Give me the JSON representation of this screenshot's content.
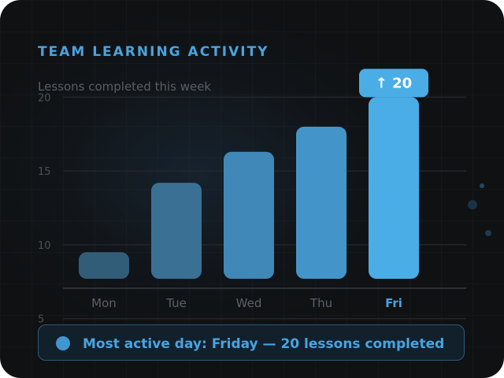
{
  "card": {
    "title": "TEAM LEARNING ACTIVITY",
    "subtitle": "Lessons completed this week"
  },
  "chart_data": {
    "type": "bar",
    "categories": [
      "Mon",
      "Tue",
      "Wed",
      "Thu",
      "Fri"
    ],
    "values": [
      9.5,
      14.2,
      16.3,
      18.0,
      20
    ],
    "y_ticks": [
      5,
      10,
      15,
      20
    ],
    "ylim": [
      4.5,
      20.5
    ],
    "grid": true,
    "highlight": {
      "category": "Fri",
      "label": "↑ 20"
    },
    "colors": {
      "bars": [
        "#325d79",
        "#3a7094",
        "#4088b8",
        "#4395c9",
        "#4aade6"
      ],
      "highlight": "#4aade6",
      "grid": "#23272c",
      "tick_text": "#4c5055",
      "category_text": "#5c6166",
      "highlight_text": "#4aa3df"
    }
  },
  "callout": {
    "text": "Most active day: Friday — 20 lessons completed"
  }
}
